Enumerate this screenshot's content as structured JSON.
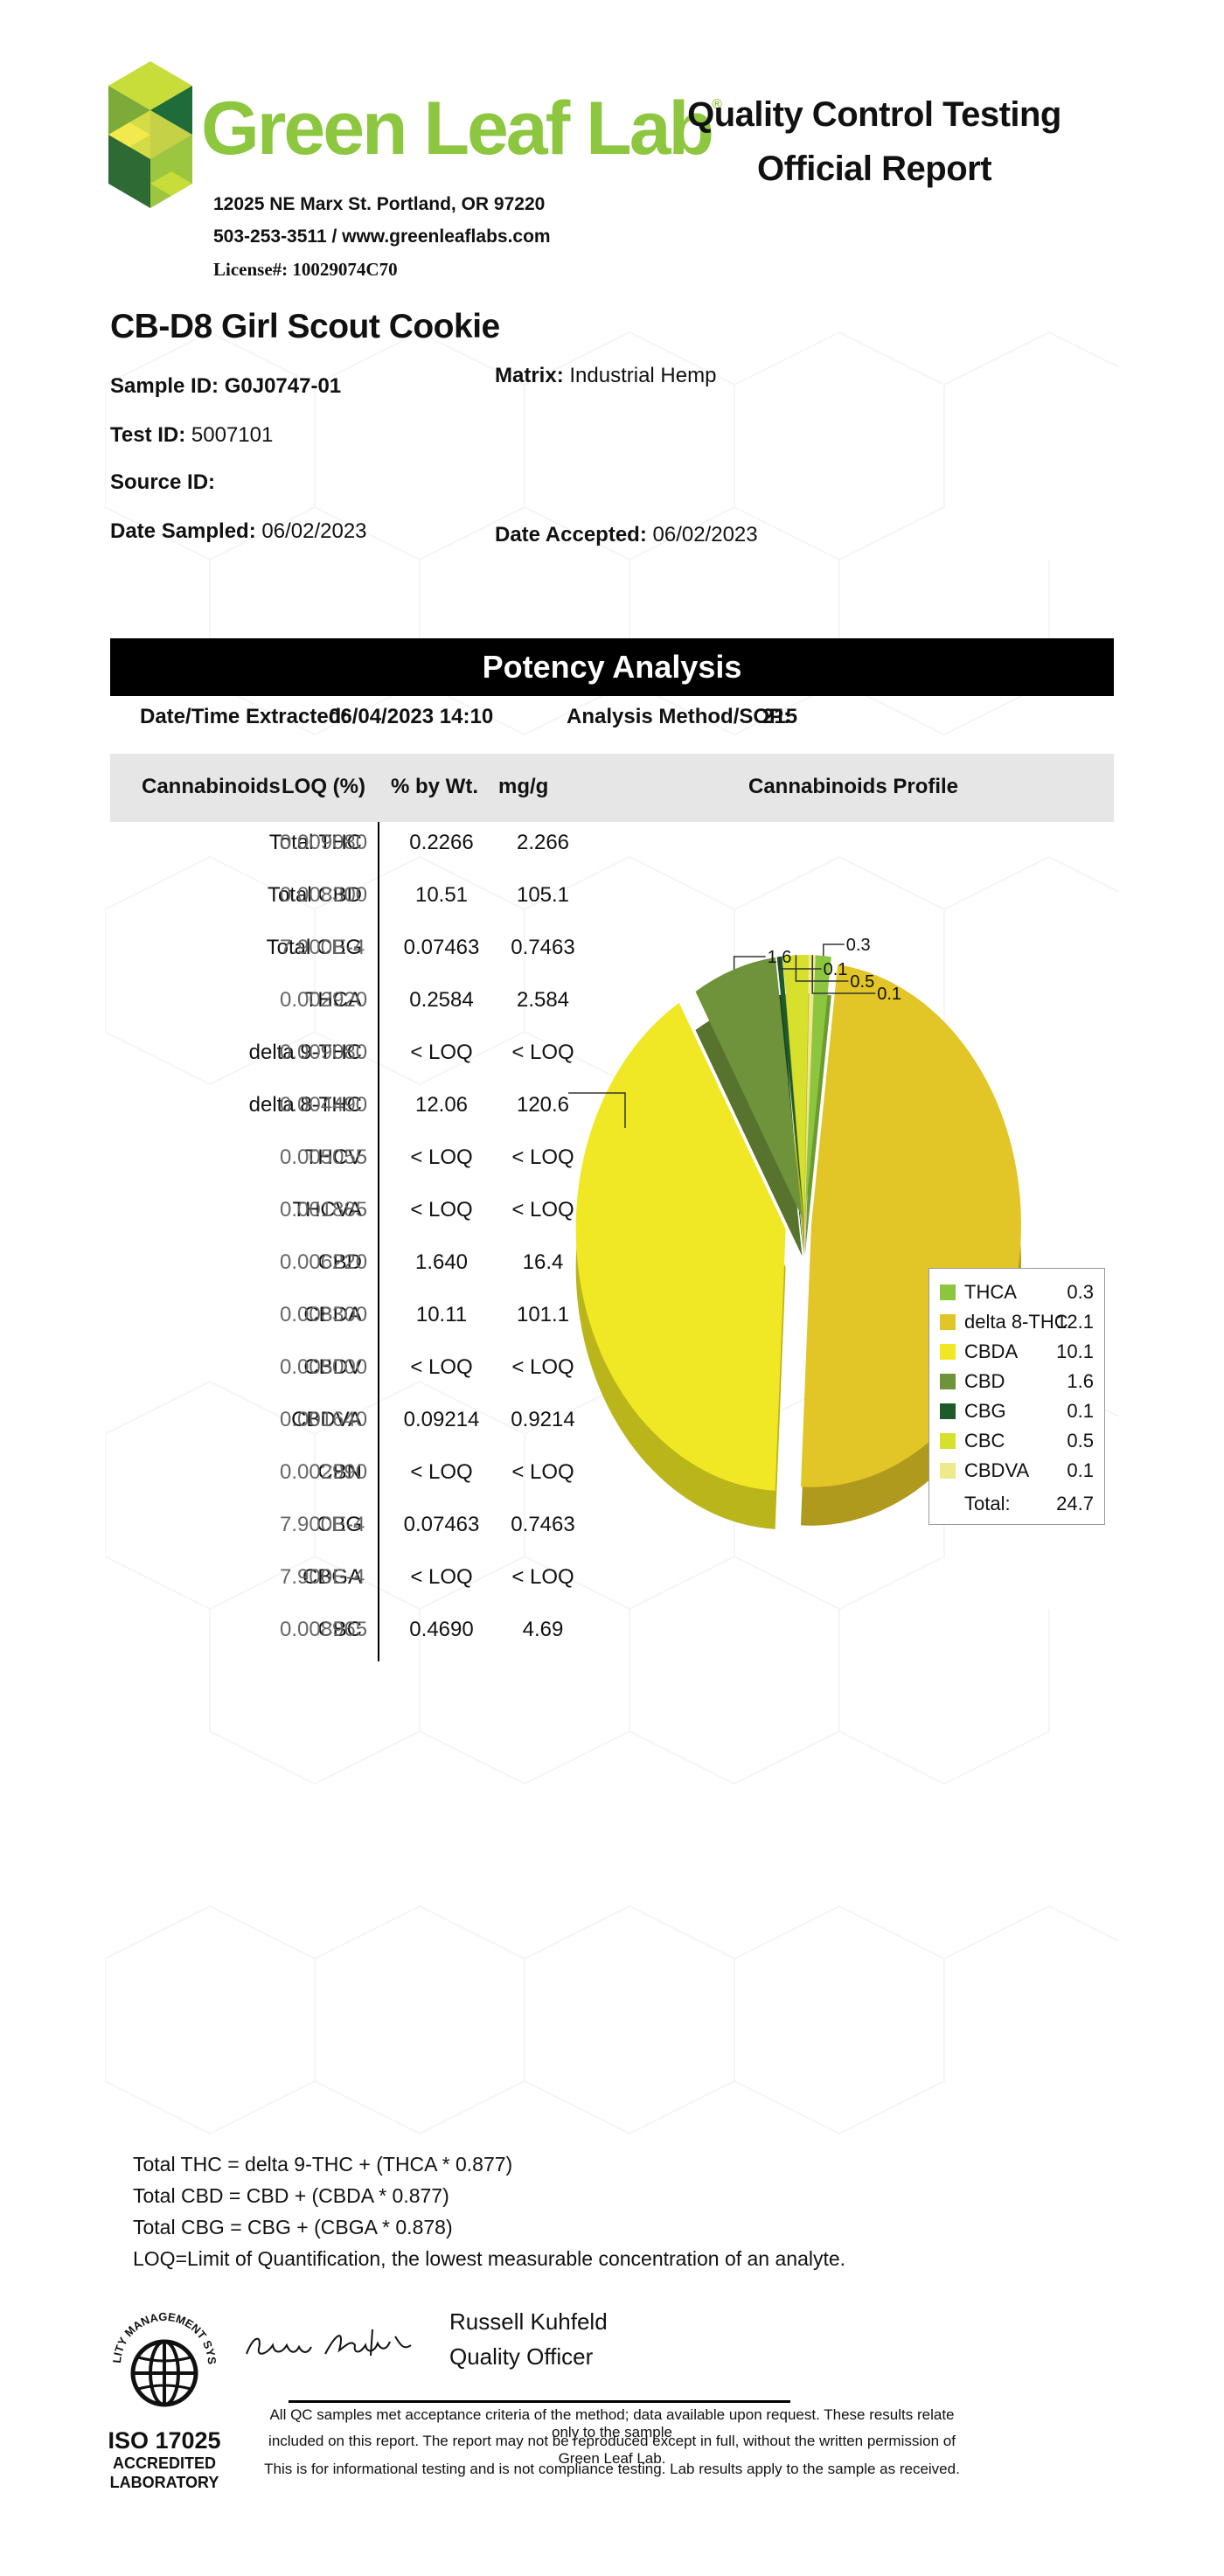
{
  "header": {
    "brand": "Green Leaf Lab",
    "trademark": "®",
    "address": "12025 NE Marx St. Portland, OR 97220",
    "contact": "503-253-3511 / www.greenleaflabs.com",
    "license": "License#: 10029074C70",
    "report_title_1": "Quality Control Testing",
    "report_title_2": "Official Report"
  },
  "sample": {
    "product_name": "CB-D8 Girl Scout Cookie",
    "sample_id_label": "Sample ID:",
    "sample_id": "G0J0747-01",
    "test_id_label": "Test ID:",
    "test_id": "5007101",
    "source_id_label": "Source ID:",
    "source_id": "",
    "date_sampled_label": "Date Sampled:",
    "date_sampled": "06/02/2023",
    "matrix_label": "Matrix:",
    "matrix": "Industrial Hemp",
    "date_accepted_label": "Date Accepted:",
    "date_accepted": "06/02/2023"
  },
  "potency": {
    "section_title": "Potency Analysis",
    "extracted_label": "Date/Time Extracted:",
    "extracted_value": "06/04/2023  14:10",
    "method_label": "Analysis Method/SOP:",
    "method_value": "215",
    "columns": [
      "Cannabinoids",
      "LOQ (%)",
      "% by Wt.",
      "mg/g"
    ],
    "profile_title": "Cannabinoids Profile",
    "rows": [
      {
        "name": "Total THC",
        "loq": "0.009080",
        "pct": "0.2266",
        "mg": "2.266"
      },
      {
        "name": "Total CBD",
        "loq": "0.008300",
        "pct": "10.51",
        "mg": "105.1"
      },
      {
        "name": "Total CBG",
        "loq": "7.900E-4",
        "pct": "0.07463",
        "mg": "0.7463"
      },
      {
        "name": "THCA",
        "loq": "0.002920",
        "pct": "0.2584",
        "mg": "2.584"
      },
      {
        "name": "delta 9-THC",
        "loq": "0.009080",
        "pct": "< LOQ",
        "mg": "< LOQ"
      },
      {
        "name": "delta 8-THC",
        "loq": "0.004490",
        "pct": "12.06",
        "mg": "120.6"
      },
      {
        "name": "THCV",
        "loq": "0.005055",
        "pct": "< LOQ",
        "mg": "< LOQ"
      },
      {
        "name": "THCVA",
        "loq": "0.001885",
        "pct": "< LOQ",
        "mg": "< LOQ"
      },
      {
        "name": "CBD",
        "loq": "0.006220",
        "pct": "1.640",
        "mg": "16.4"
      },
      {
        "name": "CBDA",
        "loq": "0.008300",
        "pct": "10.11",
        "mg": "101.1"
      },
      {
        "name": "CBDV",
        "loq": "0.005000",
        "pct": "< LOQ",
        "mg": "< LOQ"
      },
      {
        "name": "CBDVA",
        "loq": "0.001640",
        "pct": "0.09214",
        "mg": "0.9214"
      },
      {
        "name": "CBN",
        "loq": "0.002990",
        "pct": "< LOQ",
        "mg": "< LOQ"
      },
      {
        "name": "CBG",
        "loq": "7.900E-4",
        "pct": "0.07463",
        "mg": "0.7463"
      },
      {
        "name": "CBGA",
        "loq": "7.900E-4",
        "pct": "< LOQ",
        "mg": "< LOQ"
      },
      {
        "name": "CBC",
        "loq": "0.008965",
        "pct": "0.4690",
        "mg": "4.69"
      }
    ]
  },
  "chart_data": {
    "type": "pie",
    "title": "Cannabinoids Profile",
    "slices": [
      {
        "name": "THCA",
        "value": 0.3,
        "label": "0.3",
        "color": "#8cc63f"
      },
      {
        "name": "delta 8-THC",
        "value": 12.1,
        "label": "",
        "color": "#e2c526"
      },
      {
        "name": "CBDA",
        "value": 10.1,
        "label": "",
        "color": "#f0e824"
      },
      {
        "name": "CBD",
        "value": 1.6,
        "label": "1.6",
        "color": "#6f933a"
      },
      {
        "name": "CBG",
        "value": 0.1,
        "label": "0.1",
        "color": "#1f5a2a"
      },
      {
        "name": "CBC",
        "value": 0.5,
        "label": "0.5",
        "color": "#d7e02c"
      },
      {
        "name": "CBDVA",
        "value": 0.1,
        "label": "0.1",
        "color": "#eee98a"
      }
    ],
    "legend": [
      {
        "name": "THCA",
        "value": "0.3"
      },
      {
        "name": "delta 8-THC",
        "value": "12.1"
      },
      {
        "name": "CBDA",
        "value": "10.1"
      },
      {
        "name": "CBD",
        "value": "1.6"
      },
      {
        "name": "CBG",
        "value": "0.1"
      },
      {
        "name": "CBC",
        "value": "0.5"
      },
      {
        "name": "CBDVA",
        "value": "0.1"
      }
    ],
    "total_label": "Total:",
    "total_value": "24.7",
    "legend_position": "right"
  },
  "footer": {
    "formulas": [
      "Total THC =  delta 9-THC + (THCA * 0.877)",
      "Total CBD =  CBD + (CBDA * 0.877)",
      "Total CBG = CBG + (CBGA * 0.878)",
      "LOQ=Limit of Quantification, the lowest measurable concentration of an analyte."
    ],
    "seal_text": "QUALITY MANAGEMENT SYSTEM",
    "iso_line1": "ISO 17025",
    "iso_line2": "ACCREDITED",
    "iso_line3": "LABORATORY",
    "signer_name": "Russell Kuhfeld",
    "signer_title": "Quality Officer",
    "disclaimer_1": "All QC samples met acceptance criteria of the method; data available upon request. These results relate only to the sample",
    "disclaimer_2": "included on this report. The report may not be reproduced except in full, without the written permission of Green Leaf Lab.",
    "disclaimer_3": "This is for informational testing and is not compliance testing. Lab results apply to the sample as received."
  }
}
